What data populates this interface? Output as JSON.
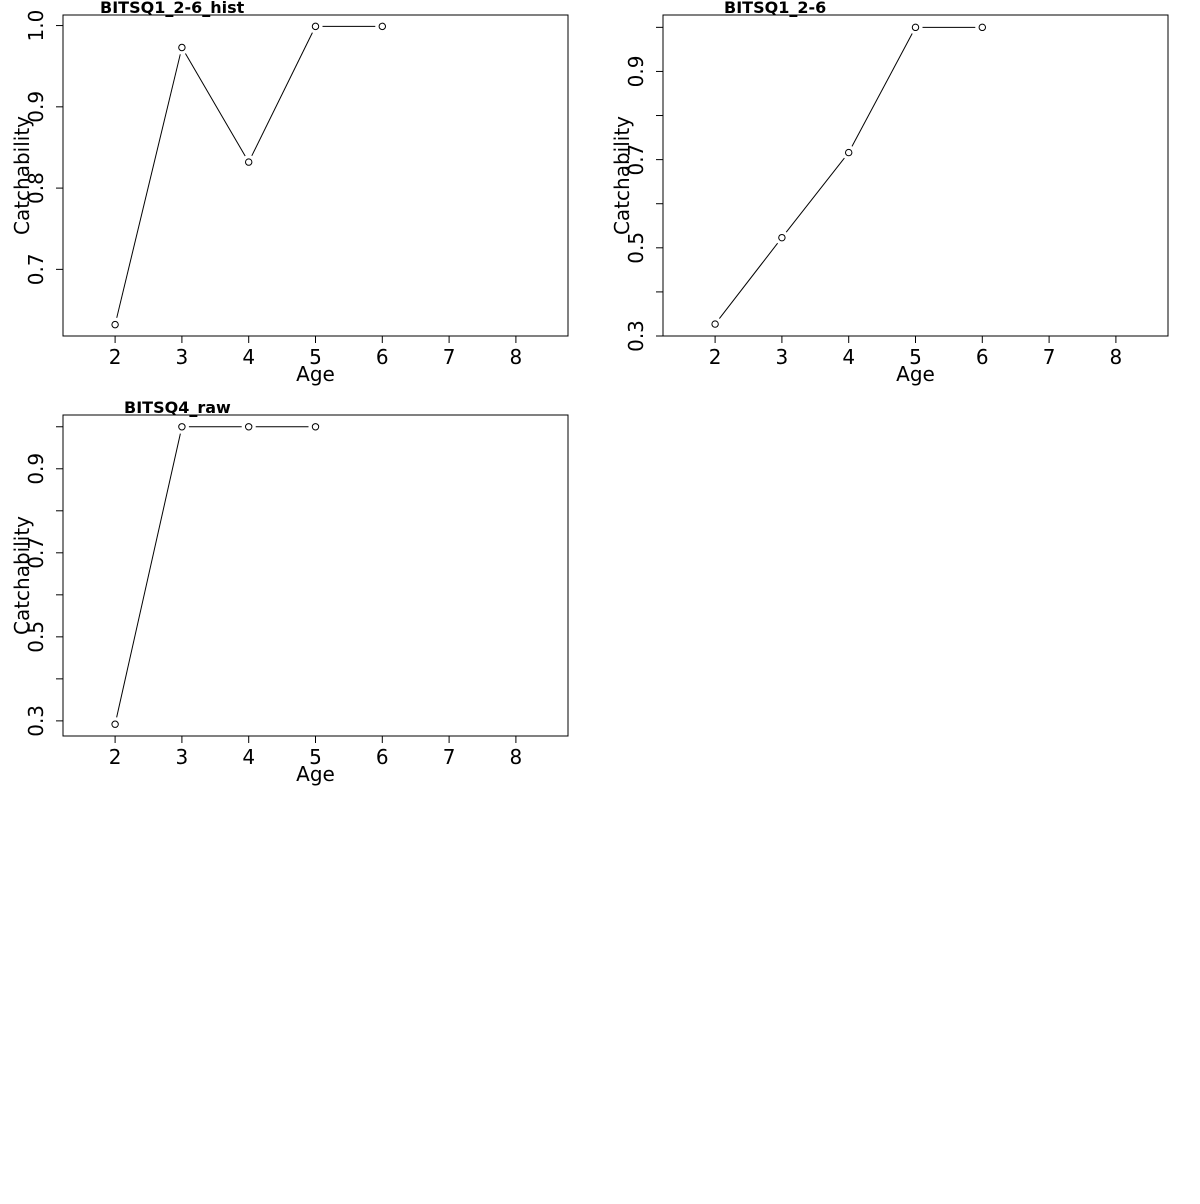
{
  "chart_data": [
    {
      "type": "line",
      "title": "BITSQ1_2-6_hist",
      "xlabel": "Age",
      "ylabel": "Catchability",
      "x": [
        2,
        3,
        4,
        5,
        6
      ],
      "y": [
        0.632,
        0.973,
        0.832,
        0.999,
        0.999
      ],
      "xlim": [
        1.22,
        8.78
      ],
      "ylim": [
        0.618,
        1.013
      ],
      "xticks": [
        2,
        3,
        4,
        5,
        6,
        7,
        8
      ],
      "yticks": [
        0.7,
        0.8,
        0.9,
        1.0
      ],
      "yticklabels": [
        "0.7",
        "0.8",
        "0.9",
        "1.0"
      ],
      "grid": false,
      "marker": "open-circle"
    },
    {
      "type": "line",
      "title": "BITSQ1_2-6",
      "xlabel": "Age",
      "ylabel": "Catchability",
      "x": [
        2,
        3,
        4,
        5,
        6
      ],
      "y": [
        0.327,
        0.523,
        0.716,
        1.0,
        1.0
      ],
      "xlim": [
        1.22,
        8.78
      ],
      "ylim": [
        0.3,
        1.028
      ],
      "xticks": [
        2,
        3,
        4,
        5,
        6,
        7,
        8
      ],
      "yticks": [
        0.3,
        0.4,
        0.5,
        0.6,
        0.7,
        0.8,
        0.9,
        1.0
      ],
      "yticklabels": [
        "0.3",
        "",
        "0.5",
        "",
        "0.7",
        "",
        "0.9",
        ""
      ],
      "grid": false,
      "marker": "open-circle"
    },
    {
      "type": "line",
      "title": "BITSQ4_raw",
      "xlabel": "Age",
      "ylabel": "Catchability",
      "x": [
        2,
        3,
        4,
        5
      ],
      "y": [
        0.292,
        1.0,
        1.0,
        1.0
      ],
      "xlim": [
        1.22,
        8.78
      ],
      "ylim": [
        0.264,
        1.028
      ],
      "xticks": [
        2,
        3,
        4,
        5,
        6,
        7,
        8
      ],
      "yticks": [
        0.3,
        0.4,
        0.5,
        0.6,
        0.7,
        0.8,
        0.9,
        1.0
      ],
      "yticklabels": [
        "0.3",
        "",
        "0.5",
        "",
        "0.7",
        "",
        "0.9",
        ""
      ],
      "grid": false,
      "marker": "open-circle"
    }
  ]
}
